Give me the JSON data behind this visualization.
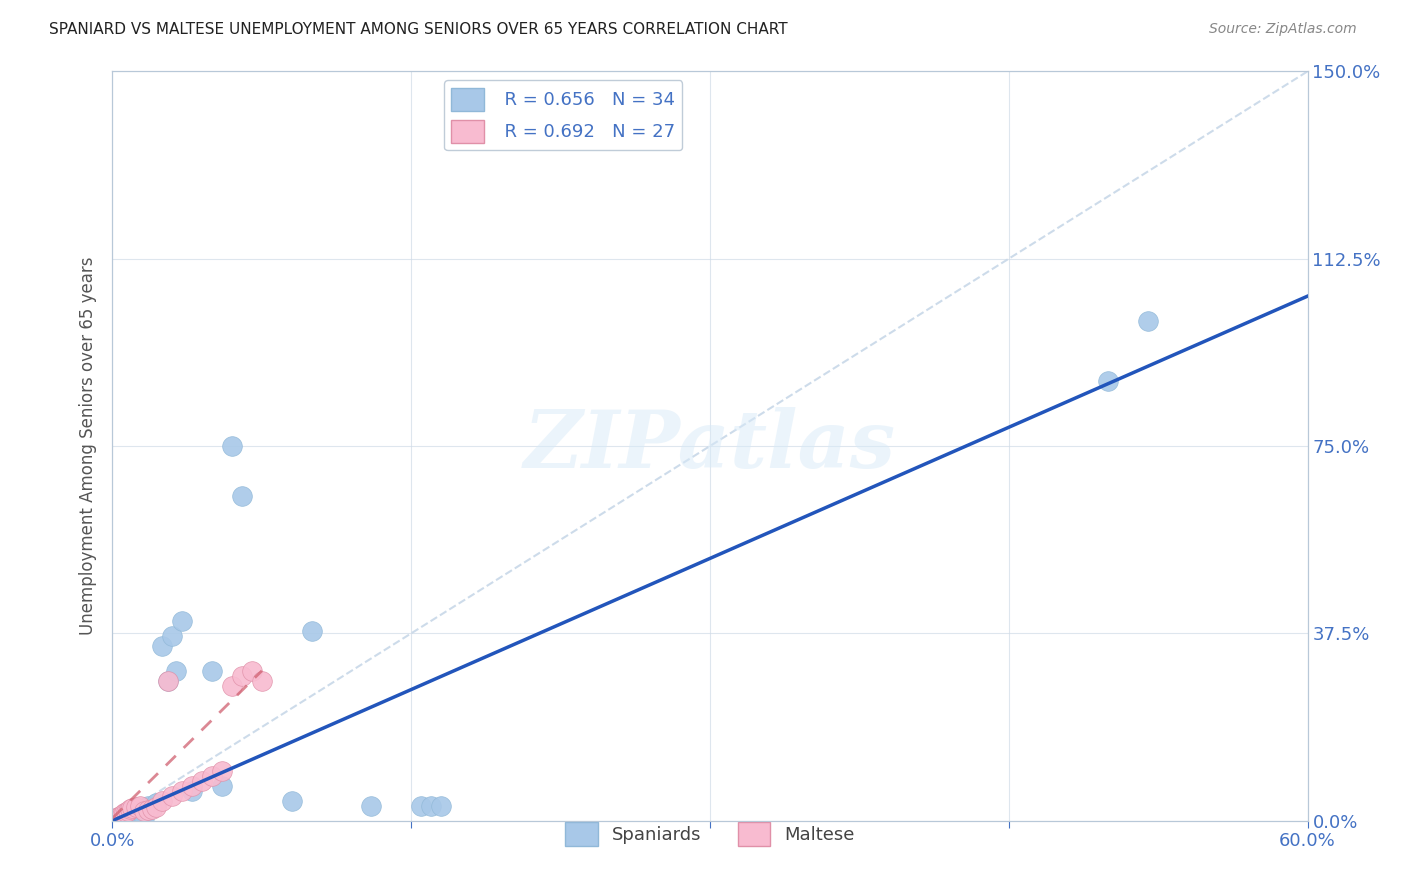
{
  "title": "SPANIARD VS MALTESE UNEMPLOYMENT AMONG SENIORS OVER 65 YEARS CORRELATION CHART",
  "source": "Source: ZipAtlas.com",
  "ylabel": "Unemployment Among Seniors over 65 years",
  "xlim": [
    0.0,
    0.6
  ],
  "ylim": [
    0.0,
    1.5
  ],
  "xtick_positions": [
    0.0,
    0.15,
    0.3,
    0.45,
    0.6
  ],
  "xtick_labels": [
    "0.0%",
    "",
    "",
    "",
    "60.0%"
  ],
  "ytick_labels_right": [
    "0.0%",
    "37.5%",
    "75.0%",
    "112.5%",
    "150.0%"
  ],
  "yticks_right": [
    0.0,
    0.375,
    0.75,
    1.125,
    1.5
  ],
  "spaniard_color": "#a8c8e8",
  "maltese_color": "#f8bbd0",
  "spaniard_line_color": "#2255bb",
  "maltese_line_color": "#e8708080",
  "diagonal_color": "#c8d8e8",
  "legend_r_spaniard": "R = 0.656",
  "legend_n_spaniard": "N = 34",
  "legend_r_maltese": "R = 0.692",
  "legend_n_maltese": "N = 27",
  "watermark": "ZIPatlas",
  "spaniard_x": [
    0.002,
    0.003,
    0.004,
    0.005,
    0.006,
    0.007,
    0.008,
    0.009,
    0.01,
    0.012,
    0.013,
    0.015,
    0.016,
    0.018,
    0.02,
    0.022,
    0.025,
    0.028,
    0.03,
    0.032,
    0.035,
    0.04,
    0.05,
    0.055,
    0.06,
    0.065,
    0.09,
    0.1,
    0.13,
    0.155,
    0.16,
    0.165,
    0.5,
    0.52
  ],
  "spaniard_y": [
    0.005,
    0.004,
    0.003,
    0.005,
    0.004,
    0.003,
    0.005,
    0.004,
    0.005,
    0.004,
    0.005,
    0.004,
    0.005,
    0.03,
    0.025,
    0.035,
    0.35,
    0.28,
    0.37,
    0.3,
    0.4,
    0.06,
    0.3,
    0.07,
    0.75,
    0.65,
    0.04,
    0.38,
    0.03,
    0.03,
    0.03,
    0.03,
    0.88,
    1.0
  ],
  "maltese_x": [
    0.002,
    0.003,
    0.004,
    0.005,
    0.006,
    0.007,
    0.008,
    0.009,
    0.01,
    0.012,
    0.014,
    0.016,
    0.018,
    0.02,
    0.022,
    0.025,
    0.028,
    0.03,
    0.035,
    0.04,
    0.045,
    0.05,
    0.055,
    0.06,
    0.065,
    0.07,
    0.075
  ],
  "maltese_y": [
    0.005,
    0.008,
    0.01,
    0.012,
    0.015,
    0.018,
    0.02,
    0.023,
    0.025,
    0.028,
    0.03,
    0.02,
    0.022,
    0.024,
    0.028,
    0.04,
    0.28,
    0.05,
    0.06,
    0.07,
    0.08,
    0.09,
    0.1,
    0.27,
    0.29,
    0.3,
    0.28
  ],
  "spaniard_line_x": [
    0.0,
    0.6
  ],
  "spaniard_line_y": [
    0.0,
    1.05
  ],
  "maltese_line_x": [
    0.0,
    0.075
  ],
  "maltese_line_y": [
    0.005,
    0.3
  ]
}
